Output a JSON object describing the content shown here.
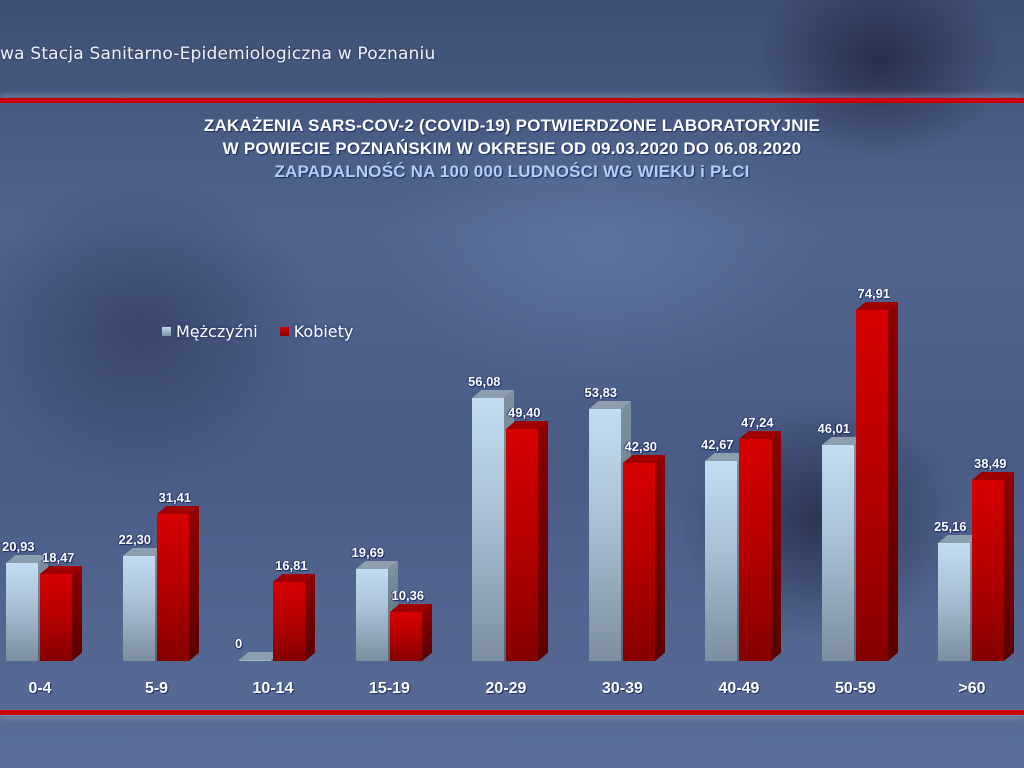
{
  "header": {
    "organization": "wa Stacja Sanitarno-Epidemiologiczna w Poznaniu"
  },
  "title": {
    "line1": "ZAKAŻENIA SARS-COV-2 (COVID-19) POTWIERDZONE LABORATORYJNIE",
    "line2": "W POWIECIE POZNAŃSKIM W OKRESIE OD 09.03.2020 DO 06.08.2020",
    "line3": "ZAPADALNOŚĆ NA 100 000 LUDNOŚCI WG WIEKU i PŁCI"
  },
  "legend": {
    "items": [
      {
        "label": "Mężczyźni",
        "color": "#b8cde2"
      },
      {
        "label": "Kobiety",
        "color": "#cc0000"
      }
    ]
  },
  "colors": {
    "accent_line": "#cc0000",
    "male": "#b8cde2",
    "female": "#cc0000"
  },
  "chart_data": {
    "type": "bar",
    "title": "ZAKAŻENIA SARS-COV-2 (COVID-19) POTWIERDZONE LABORATORYJNIE W POWIECIE POZNAŃSKIM W OKRESIE OD 09.03.2020 DO 06.08.2020",
    "subtitle": "ZAPADALNOŚĆ NA 100 000 LUDNOŚCI WG WIEKU i PŁCI",
    "xlabel": "",
    "ylabel": "",
    "categories": [
      "0-4",
      "5-9",
      "10-14",
      "15-19",
      "20-29",
      "30-39",
      "40-49",
      "50-59",
      ">60"
    ],
    "series": [
      {
        "name": "Mężczyźni",
        "values": [
          20.93,
          22.3,
          0,
          19.69,
          56.08,
          53.83,
          42.67,
          46.01,
          25.16
        ],
        "labels": [
          "20,93",
          "22,30",
          "0",
          "19,69",
          "56,08",
          "53,83",
          "42,67",
          "46,01",
          "25,16"
        ]
      },
      {
        "name": "Kobiety",
        "values": [
          18.47,
          31.41,
          16.81,
          10.36,
          49.4,
          42.3,
          47.24,
          74.91,
          38.49
        ],
        "labels": [
          "18,47",
          "31,41",
          "16,81",
          "10,36",
          "49,40",
          "42,30",
          "47,24",
          "74,91",
          "38,49"
        ]
      }
    ],
    "ylim": [
      0,
      80
    ],
    "grid": false,
    "legend_position": "top-left",
    "style": "3d-clustered-column"
  }
}
